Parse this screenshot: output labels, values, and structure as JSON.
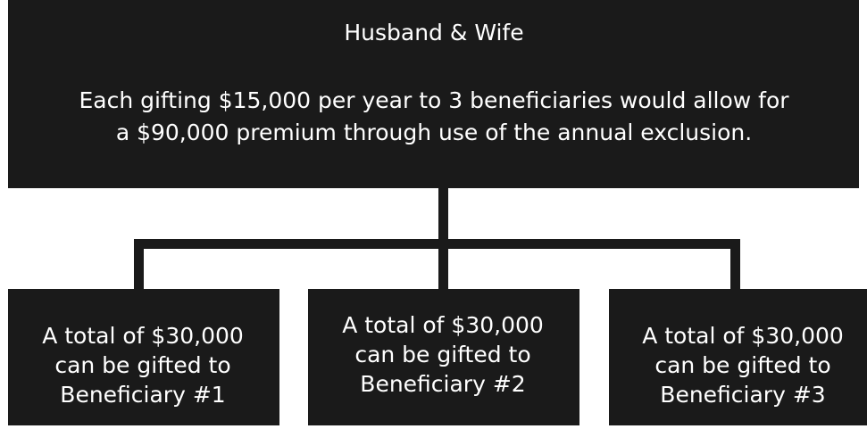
{
  "top": {
    "title": "Husband & Wife",
    "lines": [
      "Each gifting $15,000 per year to 3 beneficiaries would allow for",
      "a $90,000 premium through use of the annual exclusion."
    ]
  },
  "nodes": [
    {
      "lines": [
        "A total of $30,000",
        "can be gifted to",
        "Beneficiary #1"
      ]
    },
    {
      "lines": [
        "A total of $30,000",
        "can be gifted to",
        "Beneficiary #2"
      ]
    },
    {
      "lines": [
        "A total of $30,000",
        "can be gifted to",
        "Beneficiary #3"
      ]
    }
  ]
}
